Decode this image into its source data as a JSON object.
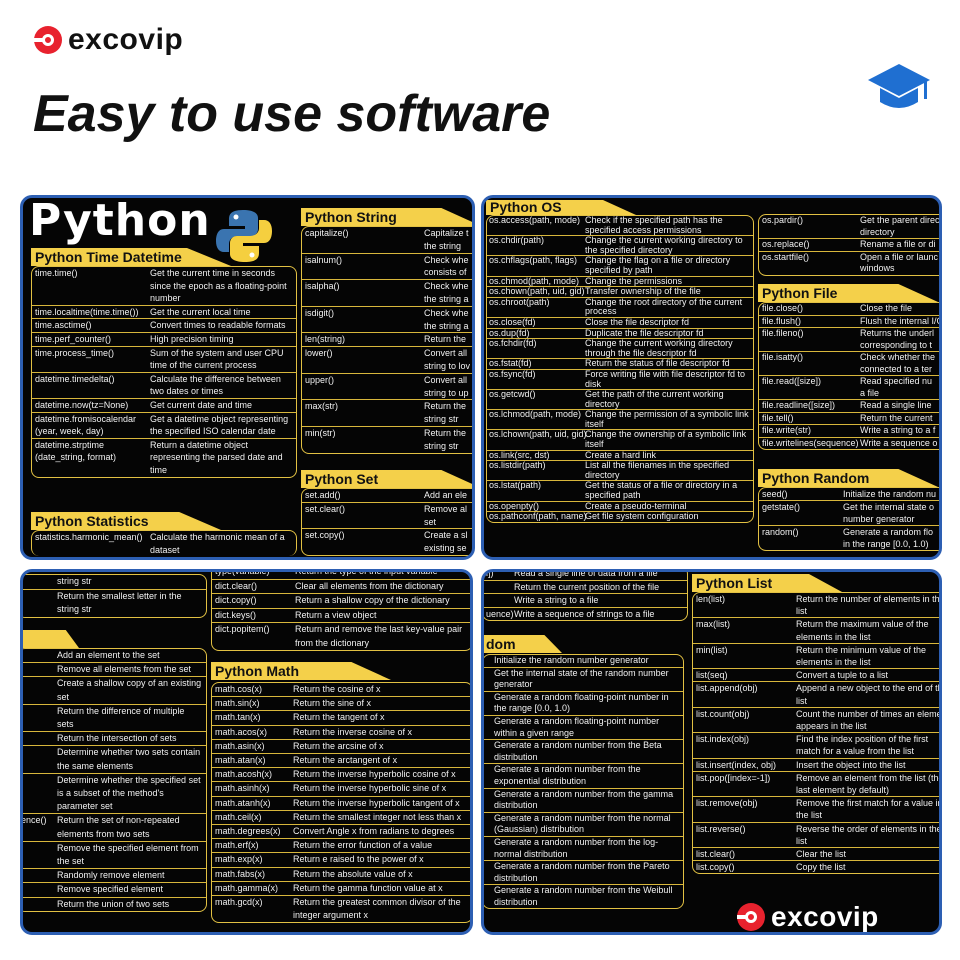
{
  "brand": {
    "name": "excovip",
    "accent": "#e8222e"
  },
  "headline": "Easy to use software",
  "icons": {
    "top_right": "graduation-cap-icon",
    "panel_logo": "python-logo-icon"
  },
  "colors": {
    "panel_bg": "#050505",
    "panel_border": "#2d5fb3",
    "header_yellow": "#f4d04a"
  },
  "python_title": "Python",
  "sections": {
    "time": {
      "title": "Python Time Datetime",
      "rows": [
        [
          "time.time()",
          "Get the current time in seconds since the epoch as a floating-point number"
        ],
        [
          "time.localtime(time.time())",
          "Get the current local time"
        ],
        [
          "time.asctime()",
          "Convert times to readable formats"
        ],
        [
          "time.perf_counter()",
          "High precision timing"
        ],
        [
          "time.process_time()",
          "Sum of the system and user CPU time of the current process"
        ],
        [
          "datetime.timedelta()",
          "Calculate the difference between two dates or times"
        ],
        [
          "datetime.now(tz=None)",
          "Get current date and time"
        ],
        [
          "datetime.fromisocalendar\n(year, week, day)",
          "Get a datetime object representing the specified ISO calendar date"
        ],
        [
          "datetime.strptime\n(date_string, format)",
          "Return a datetime object representing the parsed date and time"
        ]
      ]
    },
    "stats": {
      "title": "Python Statistics",
      "rows": [
        [
          "statistics.harmonic_mean()",
          "Calculate the harmonic mean of a dataset"
        ]
      ]
    },
    "string": {
      "title": "Python String",
      "rows": [
        [
          "capitalize()",
          "Capitalize t\nthe string"
        ],
        [
          "isalnum()",
          "Check whe\nconsists of"
        ],
        [
          "isalpha()",
          "Check whe\nthe string a"
        ],
        [
          "isdigit()",
          "Check whe\nthe string a"
        ],
        [
          "len(string)",
          "Return the"
        ],
        [
          "lower()",
          "Convert all\nstring to lov"
        ],
        [
          "upper()",
          "Convert all\nstring to up"
        ],
        [
          "max(str)",
          "Return the\nstring str"
        ],
        [
          "min(str)",
          "Return the\nstring str"
        ]
      ]
    },
    "set": {
      "title": "Python Set",
      "rows": [
        [
          "set.add()",
          "Add an ele"
        ],
        [
          "set.clear()",
          "Remove al\nset"
        ],
        [
          "set.copy()",
          "Create a sl\nexisting se"
        ]
      ]
    },
    "os": {
      "title": "Python OS",
      "rows": [
        [
          "os.access(path, mode)",
          "Check if the specified path has the specified access permissions"
        ],
        [
          "os.chdir(path)",
          "Change the current working directory to the specified directory"
        ],
        [
          "os.chflags(path, flags)",
          "Change the flag on a file or directory specified by path"
        ],
        [
          "os.chmod(path, mode)",
          "Change the permissions"
        ],
        [
          "os.chown(path, uid, gid)",
          "Transfer ownership of the file"
        ],
        [
          "os.chroot(path)",
          "Change the root directory of the current process"
        ],
        [
          "os.close(fd)",
          "Close the file descriptor fd"
        ],
        [
          "os.dup(fd)",
          "Duplicate the file descriptor fd"
        ],
        [
          "os.fchdir(fd)",
          "Change the current working directory through the file descriptor fd"
        ],
        [
          "os.fstat(fd)",
          "Return the status of file descriptor fd"
        ],
        [
          "os.fsync(fd)",
          "Force writing file with file descriptor fd to disk"
        ],
        [
          "os.getcwd()",
          "Get the path of the current working directory"
        ],
        [
          "os.lchmod(path, mode)",
          "Change the permission of a symbolic link itself"
        ],
        [
          "os.lchown(path, uid, gid)",
          "Change the ownership of a symbolic link itself"
        ],
        [
          "os.link(src, dst)",
          "Create a hard link"
        ],
        [
          "os.listdir(path)",
          "List all the filenames in the specified directory"
        ],
        [
          "os.lstat(path)",
          "Get the status of a file or directory in a specified path"
        ],
        [
          "os.openpty()",
          "Create a pseudo-terminal"
        ],
        [
          "os.pathconf(path, name)",
          "Get file system configuration"
        ]
      ]
    },
    "os2": {
      "title": "",
      "rows": [
        [
          "os.pardir()",
          "Get the parent direc\ndirectory"
        ],
        [
          "os.replace()",
          "Rename a file or di"
        ],
        [
          "os.startfile()",
          "Open a file or launc\nwindows"
        ]
      ]
    },
    "file": {
      "title": "Python File",
      "rows": [
        [
          "file.close()",
          "Close the file"
        ],
        [
          "file.flush()",
          "Flush the internal I/C"
        ],
        [
          "file.fileno()",
          "Returns the underl\ncorresponding to t"
        ],
        [
          "file.isatty()",
          "Check whether the\nconnected to a ter"
        ],
        [
          "file.read([size])",
          "Read specified nu\na file"
        ],
        [
          "file.readline([size])",
          "Read a single line"
        ],
        [
          "file.tell()",
          "Return the current"
        ],
        [
          "file.write(str)",
          "Write a string to a f"
        ],
        [
          "file.writelines(sequence)",
          "Write a sequence o"
        ]
      ]
    },
    "random": {
      "title": "Python Random",
      "rows": [
        [
          "seed()",
          "Initialize the random nu"
        ],
        [
          "getstate()",
          "Get the internal state o\nnumber generator"
        ],
        [
          "random()",
          "Generate a random flo\nin the range [0.0, 1.0)"
        ]
      ]
    },
    "strpart": {
      "title": "",
      "rows": [
        [
          "",
          "string str"
        ],
        [
          "",
          "Return the smallest letter in the\nstring str"
        ]
      ]
    },
    "setpart": {
      "title": "",
      "rows": [
        [
          "",
          "Add an element to the set"
        ],
        [
          "",
          "Remove all elements from the set"
        ],
        [
          "",
          "Create a shallow copy of an existing set"
        ],
        [
          "",
          "Return the difference of multiple sets"
        ],
        [
          "",
          "Return the intersection of sets"
        ],
        [
          "",
          "Determine whether two sets contain the same elements"
        ],
        [
          "",
          "Determine whether the specified set is a subset of the method's parameter set"
        ],
        [
          "ence()",
          "Return the set of non-repeated elements from two sets"
        ],
        [
          "",
          "Remove the specified element from the set"
        ],
        [
          "",
          "Randomly remove element"
        ],
        [
          "",
          "Remove specified element"
        ],
        [
          "",
          "Return the union of two sets"
        ]
      ]
    },
    "dict": {
      "title": "",
      "rows": [
        [
          "type(variable)",
          "Return the type of the input variable"
        ],
        [
          "dict.clear()",
          "Clear all elements from the dictionary"
        ],
        [
          "dict.copy()",
          "Return a shallow copy of the dictionary"
        ],
        [
          "dict.keys()",
          "Return a view object"
        ],
        [
          "dict.popitem()",
          "Return and remove the last key-value pair from the dictionary"
        ]
      ]
    },
    "math": {
      "title": "Python Math",
      "rows": [
        [
          "math.cos(x)",
          "Return the cosine of x"
        ],
        [
          "math.sin(x)",
          "Return the sine of x"
        ],
        [
          "math.tan(x)",
          "Return the tangent of x"
        ],
        [
          "math.acos(x)",
          "Return the inverse cosine of x"
        ],
        [
          "math.asin(x)",
          "Return the arcsine of x"
        ],
        [
          "math.atan(x)",
          "Return the arctangent of x"
        ],
        [
          "math.acosh(x)",
          "Return the inverse hyperbolic cosine of x"
        ],
        [
          "math.asinh(x)",
          "Return the inverse hyperbolic sine of x"
        ],
        [
          "math.atanh(x)",
          "Return the inverse hyperbolic tangent of x"
        ],
        [
          "math.ceil(x)",
          "Return the smallest integer not less than x"
        ],
        [
          "math.degrees(x)",
          "Convert Angle x from radians to degrees"
        ],
        [
          "math.erf(x)",
          "Return the error function of a value"
        ],
        [
          "math.exp(x)",
          "Return e raised to the power of x"
        ],
        [
          "math.fabs(x)",
          "Return the absolute value of x"
        ],
        [
          "math.gamma(x)",
          "Return the gamma function value at x"
        ],
        [
          "math.gcd(x)",
          "Return the greatest common divisor of the integer argument x"
        ]
      ]
    },
    "filepart": {
      "title": "",
      "rows": [
        [
          "l])",
          "Read a single line of data from a file"
        ],
        [
          "",
          "Return the current position of the file"
        ],
        [
          "",
          "Write a string to a file"
        ],
        [
          "uence)",
          "Write a sequence of strings to a file"
        ]
      ]
    },
    "randpart": {
      "title": "dom",
      "rows": [
        [
          "",
          "Initialize the random number generator"
        ],
        [
          "",
          "Get the internal state of the random number generator"
        ],
        [
          "",
          "Generate a random floating-point number in the range [0.0, 1.0)"
        ],
        [
          "",
          "Generate a random floating-point number within a given range"
        ],
        [
          "",
          "Generate a random number from the Beta distribution"
        ],
        [
          "",
          "Generate a random number from the exponential distribution"
        ],
        [
          "",
          "Generate a random number from the gamma distribution"
        ],
        [
          "",
          "Generate a random number from the normal (Gaussian) distribution"
        ],
        [
          "",
          "Generate a random number from the log-normal distribution"
        ],
        [
          "",
          "Generate a random number from the Pareto distribution"
        ],
        [
          "",
          "Generate a random number from the Weibull distribution"
        ]
      ]
    },
    "list": {
      "title": "Python List",
      "rows": [
        [
          "len(list)",
          "Return the number of elements in the list"
        ],
        [
          "max(list)",
          "Return the maximum value of the elements in the list"
        ],
        [
          "min(list)",
          "Return the minimum value of the elements in the list"
        ],
        [
          "list(seq)",
          "Convert a tuple to a list"
        ],
        [
          "list.append(obj)",
          "Append a new object to the end of the list"
        ],
        [
          "list.count(obj)",
          "Count the number of times an element appears in the list"
        ],
        [
          "list.index(obj)",
          "Find the index position of the first match for a value from the list"
        ],
        [
          "list.insert(index, obj)",
          "Insert the object into the list"
        ],
        [
          "list.pop([index=-1])",
          "Remove an element from the list (the last element by default)"
        ],
        [
          "list.remove(obj)",
          "Remove the first match for a value in the list"
        ],
        [
          "list.reverse()",
          "Reverse the order of elements in the list"
        ],
        [
          "list.clear()",
          "Clear the list"
        ],
        [
          "list.copy()",
          "Copy the list"
        ]
      ]
    }
  }
}
